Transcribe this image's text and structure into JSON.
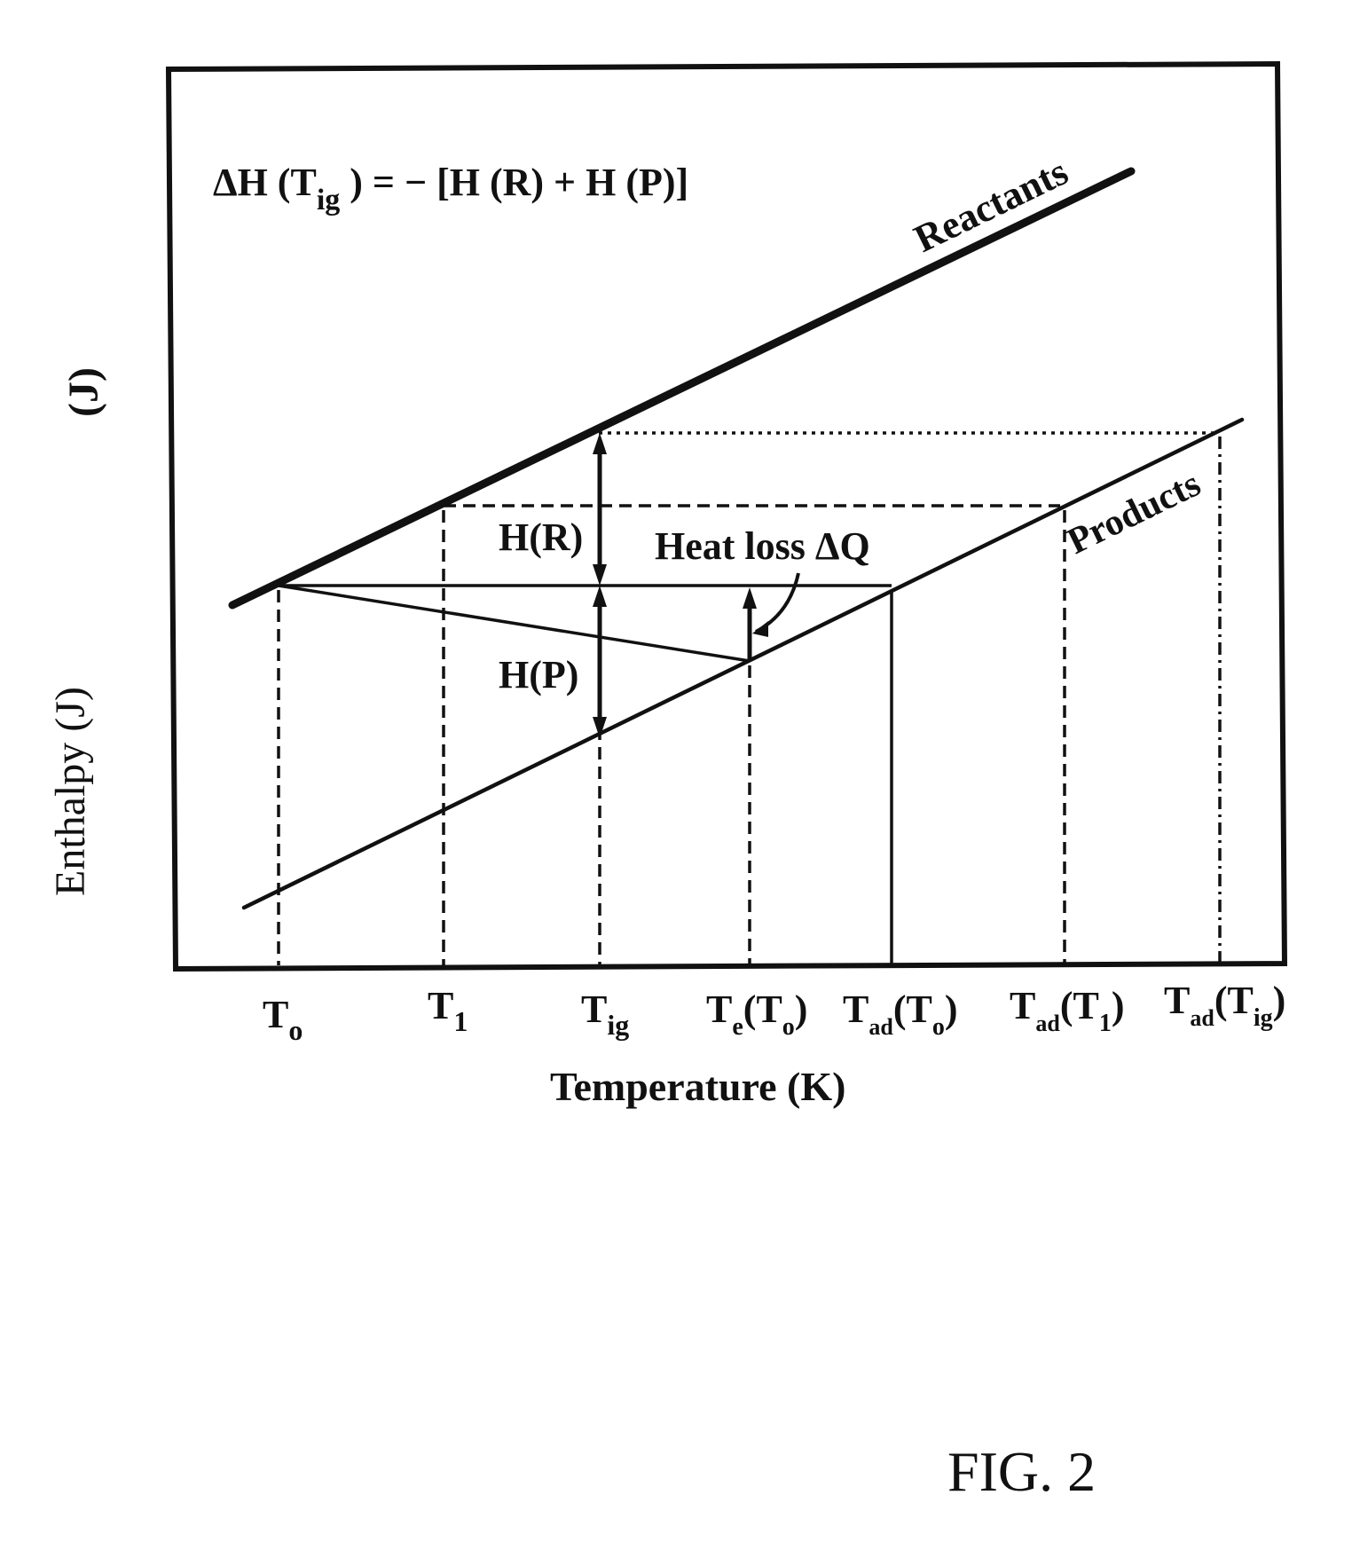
{
  "equation": {
    "prefix": "ΔH (T",
    "sub": "ig",
    "suffix": " ) = − [H (R) + H (P)]"
  },
  "axes": {
    "y_label": "Enthalpy (J)",
    "y_label_dup": "(J)",
    "x_label": "Temperature (K)"
  },
  "lines": {
    "reactants": "Reactants",
    "products": "Products"
  },
  "annotations": {
    "h_r": "H(R)",
    "h_p": "H(P)",
    "heat_loss": "Heat loss ΔQ"
  },
  "ticks": [
    {
      "base": "T",
      "sub": "o",
      "suffix": ""
    },
    {
      "base": "T",
      "sub": "1",
      "suffix": ""
    },
    {
      "base": "T",
      "sub": "ig",
      "suffix": ""
    },
    {
      "base": "T",
      "sub": "e",
      "suffix": "(T",
      "sub2": "o",
      "end": ")"
    },
    {
      "base": "T",
      "sub": "ad",
      "suffix": "(T",
      "sub2": "o",
      "end": ")"
    },
    {
      "base": "T",
      "sub": "ad",
      "suffix": "(T",
      "sub2": "1",
      "end": ")"
    },
    {
      "base": "T",
      "sub": "ad",
      "suffix": "(T",
      "sub2": "ig",
      "end": ")"
    }
  ],
  "figure_label": "FIG. 2"
}
